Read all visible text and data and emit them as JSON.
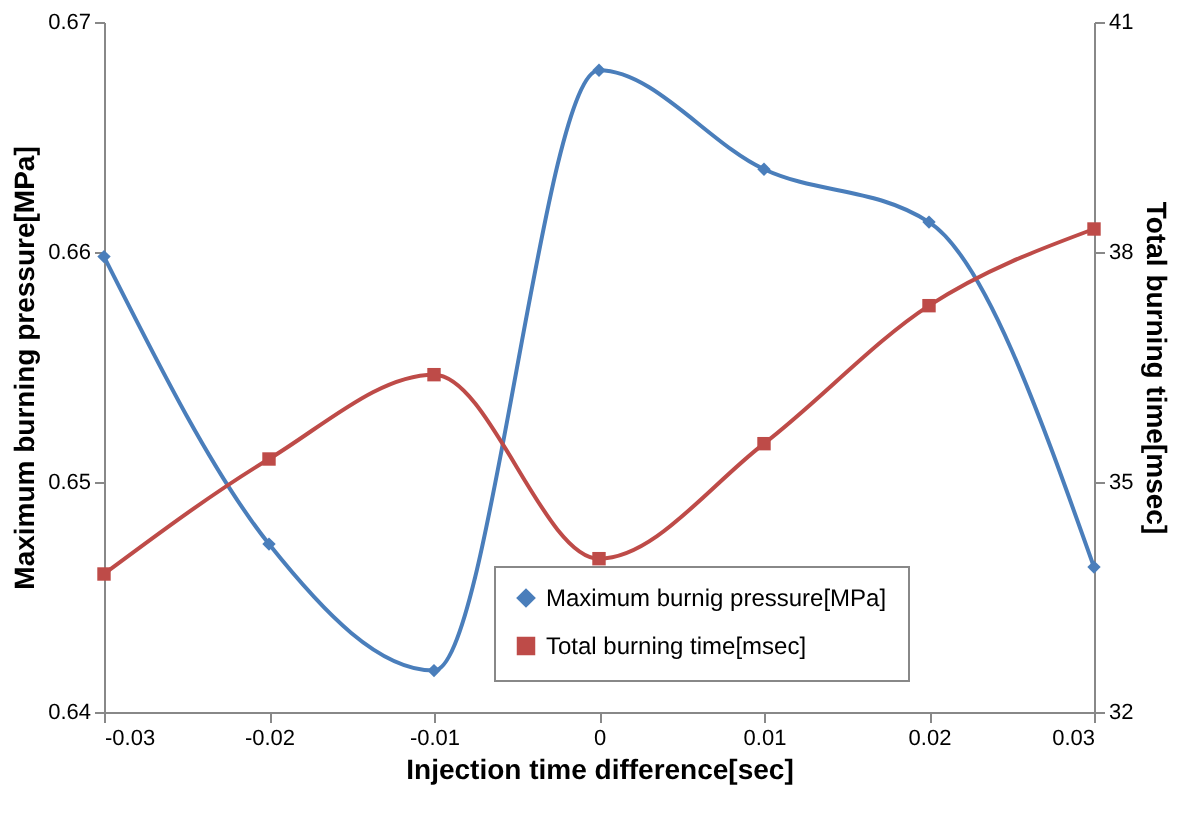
{
  "chart_data": {
    "type": "line",
    "xlabel": "Injection time difference[sec]",
    "ylabel": "Maximum burning pressure[MPa]",
    "y2label": "Total burning time[msec]",
    "x": [
      -0.03,
      -0.02,
      -0.01,
      0,
      0.01,
      0.02,
      0.03
    ],
    "series": [
      {
        "name": "Maximum burnig pressure[MPa]",
        "color": "#4a7ebb",
        "marker": "diamond",
        "values": [
          0.6598,
          0.6473,
          0.6418,
          0.6679,
          0.6636,
          0.6613,
          0.6463
        ]
      },
      {
        "name": "Total burning time[msec]",
        "color": "#be4b48",
        "marker": "square",
        "axis": "y2",
        "values": [
          33.8,
          35.3,
          36.4,
          34.0,
          35.5,
          37.3,
          38.3
        ]
      }
    ],
    "xlim": [
      -0.03,
      0.03
    ],
    "xticks": [
      -0.03,
      -0.02,
      -0.01,
      0,
      0.01,
      0.02,
      0.03
    ],
    "ylim": [
      0.64,
      0.67
    ],
    "yticks": [
      0.64,
      0.65,
      0.66,
      0.67
    ],
    "y2lim": [
      32,
      41
    ],
    "y2ticks": [
      32,
      35,
      38,
      41
    ],
    "grid": false,
    "legend": "bottom right",
    "line_style": "solid"
  }
}
